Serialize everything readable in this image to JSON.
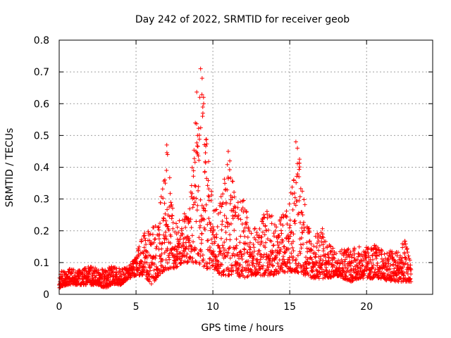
{
  "chart_data": {
    "type": "scatter",
    "title": "Day 242 of 2022, SRMTID for receiver geob",
    "xlabel": "GPS time / hours",
    "ylabel": "SRMTID / TECUs",
    "xlim": [
      0,
      24.3
    ],
    "ylim": [
      0,
      0.8
    ],
    "xticks": [
      0,
      5,
      10,
      15,
      20
    ],
    "xtick_labels": [
      "0",
      "5",
      "10",
      "15",
      "20"
    ],
    "yticks": [
      0,
      0.1,
      0.2,
      0.3,
      0.4,
      0.5,
      0.6,
      0.7,
      0.8
    ],
    "ytick_labels": [
      "0",
      "0.1",
      "0.2",
      "0.3",
      "0.4",
      "0.5",
      "0.6",
      "0.7",
      "0.8"
    ],
    "grid": true,
    "marker": "plus",
    "marker_color": "#ff0000",
    "series": [
      {
        "name": "geob",
        "envelope_hours": [
          0,
          0.5,
          1,
          1.5,
          2,
          2.5,
          3,
          3.5,
          4,
          4.5,
          5,
          5.5,
          6,
          6.5,
          7,
          7.5,
          8,
          8.5,
          9,
          9.5,
          10,
          10.5,
          11,
          11.5,
          12,
          12.5,
          13,
          13.5,
          14,
          14.5,
          15,
          15.5,
          16,
          16.5,
          17,
          17.5,
          18,
          18.5,
          19,
          19.5,
          20,
          20.5,
          21,
          21.5,
          22,
          22.5,
          22.9
        ],
        "envelope_min": [
          0.02,
          0.03,
          0.03,
          0.03,
          0.03,
          0.03,
          0.02,
          0.03,
          0.03,
          0.05,
          0.06,
          0.06,
          0.03,
          0.06,
          0.08,
          0.08,
          0.1,
          0.1,
          0.1,
          0.08,
          0.08,
          0.06,
          0.06,
          0.06,
          0.05,
          0.06,
          0.06,
          0.06,
          0.06,
          0.07,
          0.07,
          0.07,
          0.06,
          0.05,
          0.05,
          0.05,
          0.06,
          0.05,
          0.04,
          0.05,
          0.05,
          0.05,
          0.05,
          0.04,
          0.04,
          0.04,
          0.04
        ],
        "envelope_max": [
          0.07,
          0.08,
          0.08,
          0.08,
          0.09,
          0.08,
          0.08,
          0.09,
          0.08,
          0.09,
          0.12,
          0.2,
          0.2,
          0.26,
          0.47,
          0.23,
          0.25,
          0.3,
          0.71,
          0.6,
          0.27,
          0.3,
          0.45,
          0.29,
          0.3,
          0.2,
          0.22,
          0.27,
          0.24,
          0.25,
          0.3,
          0.48,
          0.3,
          0.16,
          0.23,
          0.16,
          0.14,
          0.15,
          0.15,
          0.15,
          0.15,
          0.16,
          0.14,
          0.14,
          0.14,
          0.17,
          0.1
        ],
        "peaks": [
          {
            "x": 6.9,
            "y": 0.35
          },
          {
            "x": 7.0,
            "y": 0.47
          },
          {
            "x": 7.05,
            "y": 0.44
          },
          {
            "x": 8.9,
            "y": 0.45
          },
          {
            "x": 9.0,
            "y": 0.5
          },
          {
            "x": 9.15,
            "y": 0.62
          },
          {
            "x": 9.2,
            "y": 0.71
          },
          {
            "x": 9.3,
            "y": 0.68
          },
          {
            "x": 9.4,
            "y": 0.6
          },
          {
            "x": 9.35,
            "y": 0.57
          },
          {
            "x": 11.0,
            "y": 0.45
          },
          {
            "x": 11.1,
            "y": 0.42
          },
          {
            "x": 15.4,
            "y": 0.48
          },
          {
            "x": 15.5,
            "y": 0.46
          },
          {
            "x": 15.6,
            "y": 0.37
          }
        ]
      }
    ]
  }
}
